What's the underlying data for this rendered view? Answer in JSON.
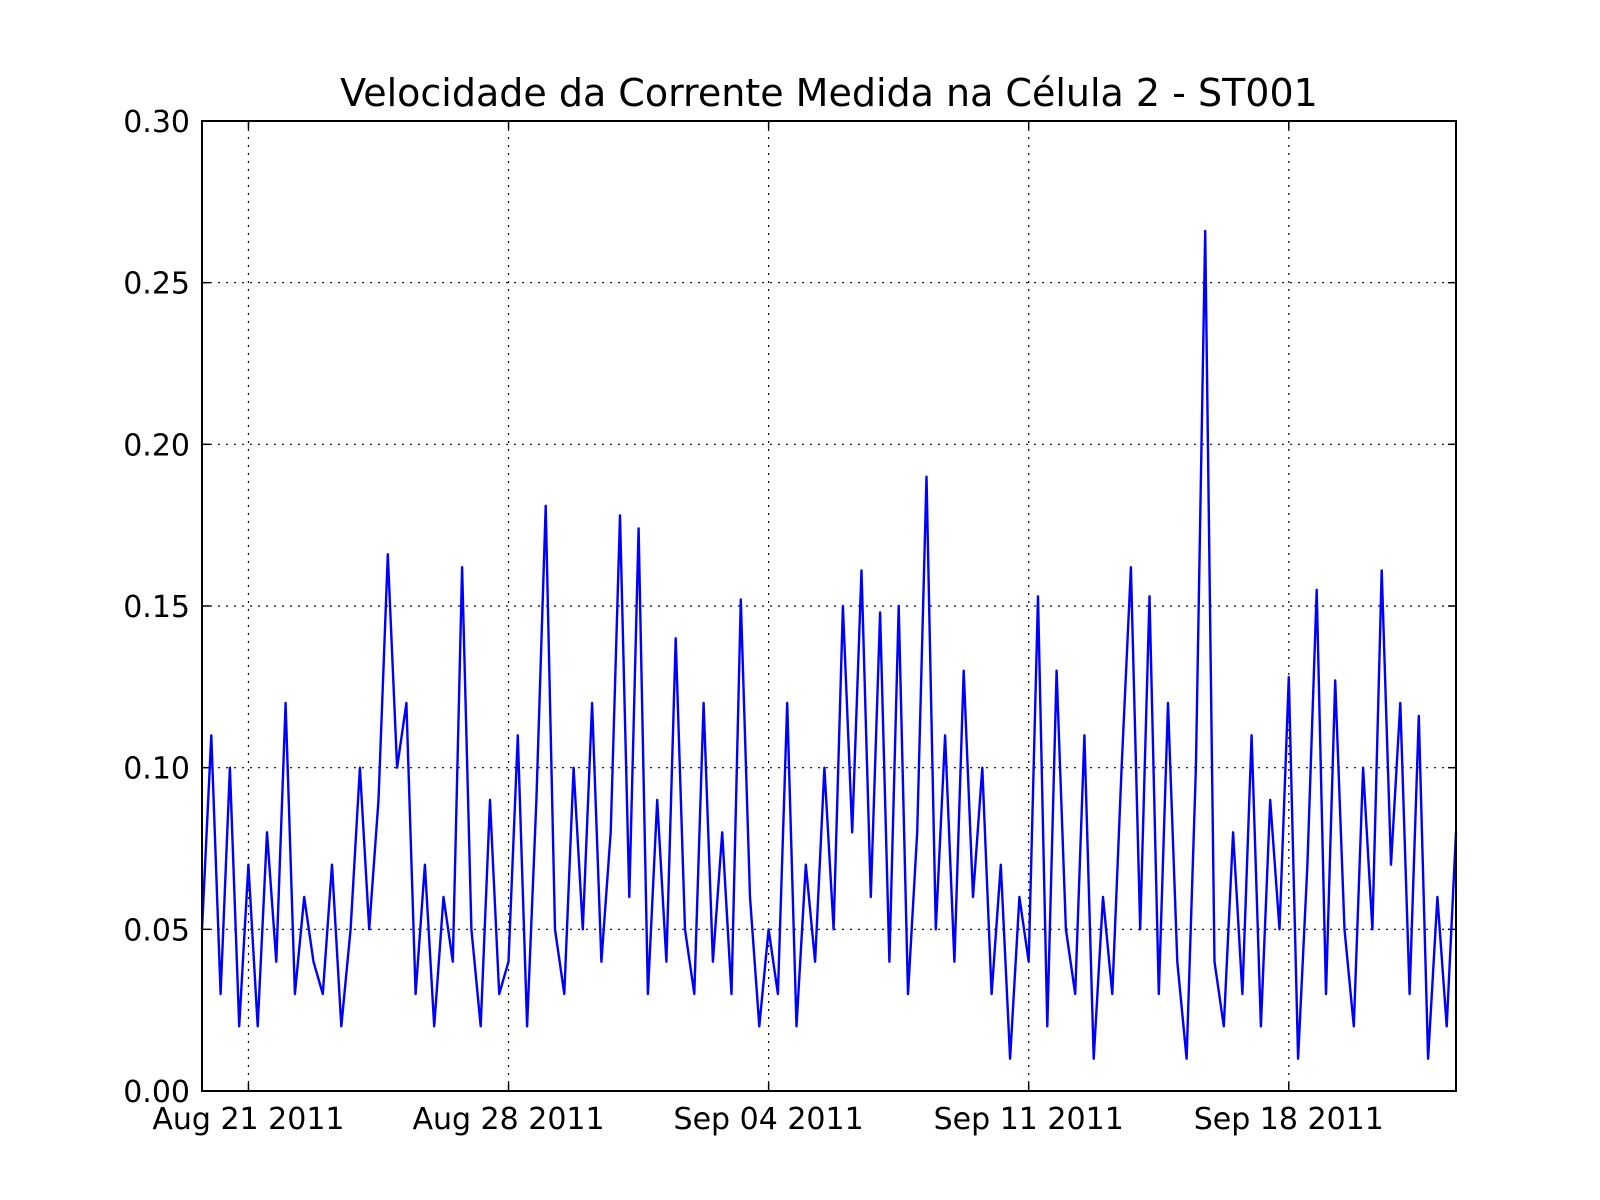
{
  "chart_data": {
    "type": "line",
    "title": "Velocidade da Corrente Medida na Célula 2 - ST001",
    "color": "#0000ff",
    "grid": true,
    "xlim": [
      "2011-08-19T18:00",
      "2011-09-22T12:00"
    ],
    "xticks": [
      {
        "value": "2011-08-21T00:00",
        "label": "Aug 21 2011"
      },
      {
        "value": "2011-08-28T00:00",
        "label": "Aug 28 2011"
      },
      {
        "value": "2011-09-04T00:00",
        "label": "Sep 04 2011"
      },
      {
        "value": "2011-09-11T00:00",
        "label": "Sep 11 2011"
      },
      {
        "value": "2011-09-18T00:00",
        "label": "Sep 18 2011"
      }
    ],
    "ylim": [
      0,
      0.3
    ],
    "yticks": [
      {
        "value": 0,
        "label": "0.00"
      },
      {
        "value": 0.05,
        "label": "0.05"
      },
      {
        "value": 0.1,
        "label": "0.10"
      },
      {
        "value": 0.15,
        "label": "0.15"
      },
      {
        "value": 0.2,
        "label": "0.20"
      },
      {
        "value": 0.25,
        "label": "0.25"
      },
      {
        "value": 0.3,
        "label": "0.30"
      }
    ],
    "x": [
      "2011-08-19T18:00",
      "2011-08-20T00:00",
      "2011-08-20T06:00",
      "2011-08-20T12:00",
      "2011-08-20T18:00",
      "2011-08-21T00:00",
      "2011-08-21T06:00",
      "2011-08-21T12:00",
      "2011-08-21T18:00",
      "2011-08-22T00:00",
      "2011-08-22T06:00",
      "2011-08-22T12:00",
      "2011-08-22T18:00",
      "2011-08-23T00:00",
      "2011-08-23T06:00",
      "2011-08-23T12:00",
      "2011-08-23T18:00",
      "2011-08-24T00:00",
      "2011-08-24T06:00",
      "2011-08-24T12:00",
      "2011-08-24T18:00",
      "2011-08-25T00:00",
      "2011-08-25T06:00",
      "2011-08-25T12:00",
      "2011-08-25T18:00",
      "2011-08-26T00:00",
      "2011-08-26T06:00",
      "2011-08-26T12:00",
      "2011-08-26T18:00",
      "2011-08-27T00:00",
      "2011-08-27T06:00",
      "2011-08-27T12:00",
      "2011-08-27T18:00",
      "2011-08-28T00:00",
      "2011-08-28T06:00",
      "2011-08-28T12:00",
      "2011-08-28T18:00",
      "2011-08-29T00:00",
      "2011-08-29T06:00",
      "2011-08-29T12:00",
      "2011-08-29T18:00",
      "2011-08-30T00:00",
      "2011-08-30T06:00",
      "2011-08-30T12:00",
      "2011-08-30T18:00",
      "2011-08-31T00:00",
      "2011-08-31T06:00",
      "2011-08-31T12:00",
      "2011-08-31T18:00",
      "2011-09-01T00:00",
      "2011-09-01T06:00",
      "2011-09-01T12:00",
      "2011-09-01T18:00",
      "2011-09-02T00:00",
      "2011-09-02T06:00",
      "2011-09-02T12:00",
      "2011-09-02T18:00",
      "2011-09-03T00:00",
      "2011-09-03T06:00",
      "2011-09-03T12:00",
      "2011-09-03T18:00",
      "2011-09-04T00:00",
      "2011-09-04T06:00",
      "2011-09-04T12:00",
      "2011-09-04T18:00",
      "2011-09-05T00:00",
      "2011-09-05T06:00",
      "2011-09-05T12:00",
      "2011-09-05T18:00",
      "2011-09-06T00:00",
      "2011-09-06T06:00",
      "2011-09-06T12:00",
      "2011-09-06T18:00",
      "2011-09-07T00:00",
      "2011-09-07T06:00",
      "2011-09-07T12:00",
      "2011-09-07T18:00",
      "2011-09-08T00:00",
      "2011-09-08T06:00",
      "2011-09-08T12:00",
      "2011-09-08T18:00",
      "2011-09-09T00:00",
      "2011-09-09T06:00",
      "2011-09-09T12:00",
      "2011-09-09T18:00",
      "2011-09-10T00:00",
      "2011-09-10T06:00",
      "2011-09-10T12:00",
      "2011-09-10T18:00",
      "2011-09-11T00:00",
      "2011-09-11T06:00",
      "2011-09-11T12:00",
      "2011-09-11T18:00",
      "2011-09-12T00:00",
      "2011-09-12T06:00",
      "2011-09-12T12:00",
      "2011-09-12T18:00",
      "2011-09-13T00:00",
      "2011-09-13T06:00",
      "2011-09-13T12:00",
      "2011-09-13T18:00",
      "2011-09-14T00:00",
      "2011-09-14T06:00",
      "2011-09-14T12:00",
      "2011-09-14T18:00",
      "2011-09-15T00:00",
      "2011-09-15T06:00",
      "2011-09-15T12:00",
      "2011-09-15T18:00",
      "2011-09-16T00:00",
      "2011-09-16T06:00",
      "2011-09-16T12:00",
      "2011-09-16T18:00",
      "2011-09-17T00:00",
      "2011-09-17T06:00",
      "2011-09-17T12:00",
      "2011-09-17T18:00",
      "2011-09-18T00:00",
      "2011-09-18T06:00",
      "2011-09-18T12:00",
      "2011-09-18T18:00",
      "2011-09-19T00:00",
      "2011-09-19T06:00",
      "2011-09-19T12:00",
      "2011-09-19T18:00",
      "2011-09-20T00:00",
      "2011-09-20T06:00",
      "2011-09-20T12:00",
      "2011-09-20T18:00",
      "2011-09-21T00:00",
      "2011-09-21T06:00",
      "2011-09-21T12:00",
      "2011-09-21T18:00",
      "2011-09-22T00:00",
      "2011-09-22T06:00",
      "2011-09-22T12:00"
    ],
    "values": [
      0.05,
      0.11,
      0.03,
      0.1,
      0.02,
      0.07,
      0.02,
      0.08,
      0.04,
      0.12,
      0.03,
      0.06,
      0.04,
      0.03,
      0.07,
      0.02,
      0.05,
      0.1,
      0.05,
      0.09,
      0.166,
      0.1,
      0.12,
      0.03,
      0.07,
      0.02,
      0.06,
      0.04,
      0.162,
      0.05,
      0.02,
      0.09,
      0.03,
      0.04,
      0.11,
      0.02,
      0.09,
      0.181,
      0.05,
      0.03,
      0.1,
      0.05,
      0.12,
      0.04,
      0.08,
      0.178,
      0.06,
      0.174,
      0.03,
      0.09,
      0.04,
      0.14,
      0.05,
      0.03,
      0.12,
      0.04,
      0.08,
      0.03,
      0.152,
      0.06,
      0.02,
      0.05,
      0.03,
      0.12,
      0.02,
      0.07,
      0.04,
      0.1,
      0.05,
      0.15,
      0.08,
      0.161,
      0.06,
      0.148,
      0.04,
      0.15,
      0.03,
      0.08,
      0.19,
      0.05,
      0.11,
      0.04,
      0.13,
      0.06,
      0.1,
      0.03,
      0.07,
      0.01,
      0.06,
      0.04,
      0.153,
      0.02,
      0.13,
      0.05,
      0.03,
      0.11,
      0.01,
      0.06,
      0.03,
      0.1,
      0.162,
      0.05,
      0.153,
      0.03,
      0.12,
      0.04,
      0.01,
      0.1,
      0.266,
      0.04,
      0.02,
      0.08,
      0.03,
      0.11,
      0.02,
      0.09,
      0.05,
      0.128,
      0.01,
      0.07,
      0.155,
      0.03,
      0.127,
      0.05,
      0.02,
      0.1,
      0.05,
      0.161,
      0.07,
      0.12,
      0.03,
      0.116,
      0.01,
      0.06,
      0.02,
      0.08
    ]
  }
}
